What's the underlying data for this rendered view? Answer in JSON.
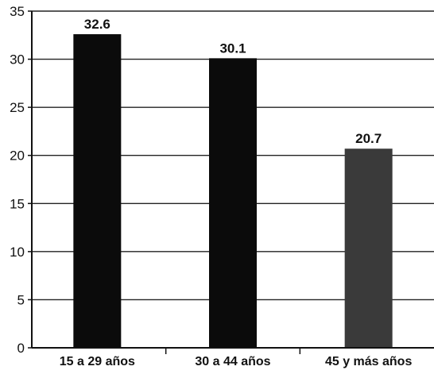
{
  "chart_data": {
    "type": "bar",
    "categories": [
      "15 a 29 años",
      "30 a 44 años",
      "45 y más años"
    ],
    "values": [
      32.6,
      30.1,
      20.7
    ],
    "value_labels": [
      "32.6",
      "30.1",
      "20.7"
    ],
    "y_ticks": [
      0,
      5,
      10,
      15,
      20,
      25,
      30,
      35
    ],
    "ylim": [
      0,
      35
    ],
    "title": "",
    "xlabel": "",
    "ylabel": "",
    "grid": true,
    "legend": "none",
    "bar_colors": [
      "#0b0b0b",
      "#0b0b0b",
      "#3a3a3a"
    ]
  }
}
